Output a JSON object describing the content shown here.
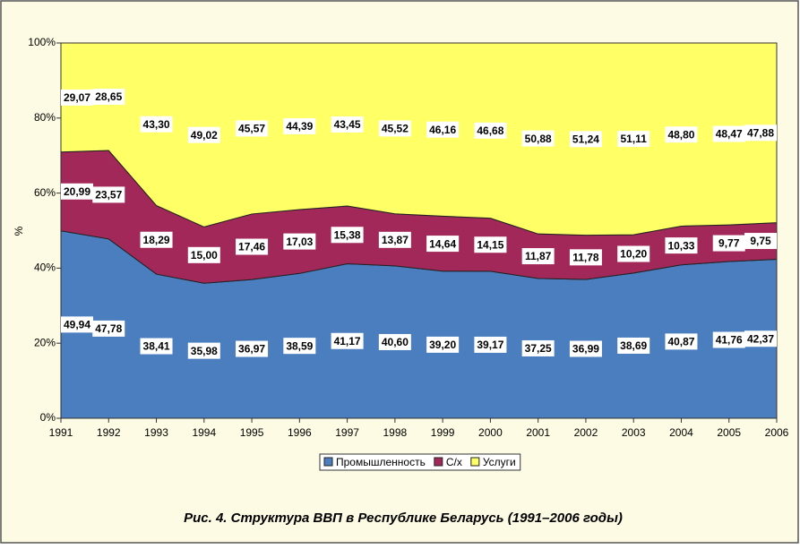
{
  "chart_data": {
    "type": "stacked_area",
    "title": "Рис. 4.  Структура ВВП в Республике Беларусь (1991–2006 годы)",
    "y_label": "%",
    "categories": [
      "1991",
      "1992",
      "1993",
      "1994",
      "1995",
      "1996",
      "1997",
      "1998",
      "1999",
      "2000",
      "2001",
      "2002",
      "2003",
      "2004",
      "2005",
      "2006"
    ],
    "series": [
      {
        "name": "Промышленность",
        "color": "#4a7ebf",
        "values": [
          49.94,
          47.78,
          38.41,
          35.98,
          36.97,
          38.59,
          41.17,
          40.6,
          39.2,
          39.17,
          37.25,
          36.99,
          38.69,
          40.87,
          41.76,
          42.37
        ],
        "value_labels": [
          "49,94",
          "47,78",
          "38,41",
          "35,98",
          "36,97",
          "38,59",
          "41,17",
          "40,60",
          "39,20",
          "39,17",
          "37,25",
          "36,99",
          "38,69",
          "40,87",
          "41,76",
          "42,37"
        ]
      },
      {
        "name": "С/х",
        "color": "#a3285a",
        "values": [
          20.99,
          23.57,
          18.29,
          15.0,
          17.46,
          17.03,
          15.38,
          13.87,
          14.64,
          14.15,
          11.87,
          11.78,
          10.2,
          10.33,
          9.77,
          9.75
        ],
        "value_labels": [
          "20,99",
          "23,57",
          "18,29",
          "15,00",
          "17,46",
          "17,03",
          "15,38",
          "13,87",
          "14,64",
          "14,15",
          "11,87",
          "11,78",
          "10,20",
          "10,33",
          "9,77",
          "9,75"
        ]
      },
      {
        "name": "Услуги",
        "color": "#ffff66",
        "values": [
          29.07,
          28.65,
          43.3,
          49.02,
          45.57,
          44.39,
          43.45,
          45.52,
          46.16,
          46.68,
          50.88,
          51.24,
          51.11,
          48.8,
          48.47,
          47.88
        ],
        "value_labels": [
          "29,07",
          "28,65",
          "43,30",
          "49,02",
          "45,57",
          "44,39",
          "43,45",
          "45,52",
          "46,16",
          "46,68",
          "50,88",
          "51,24",
          "51,11",
          "48,80",
          "48,47",
          "47,88"
        ]
      }
    ],
    "ylim": [
      0,
      100
    ],
    "yticks": [
      {
        "value": 0,
        "label": "0%"
      },
      {
        "value": 20,
        "label": "20%"
      },
      {
        "value": 40,
        "label": "40%"
      },
      {
        "value": 60,
        "label": "60%"
      },
      {
        "value": 80,
        "label": "80%"
      },
      {
        "value": 100,
        "label": "100%"
      }
    ]
  }
}
